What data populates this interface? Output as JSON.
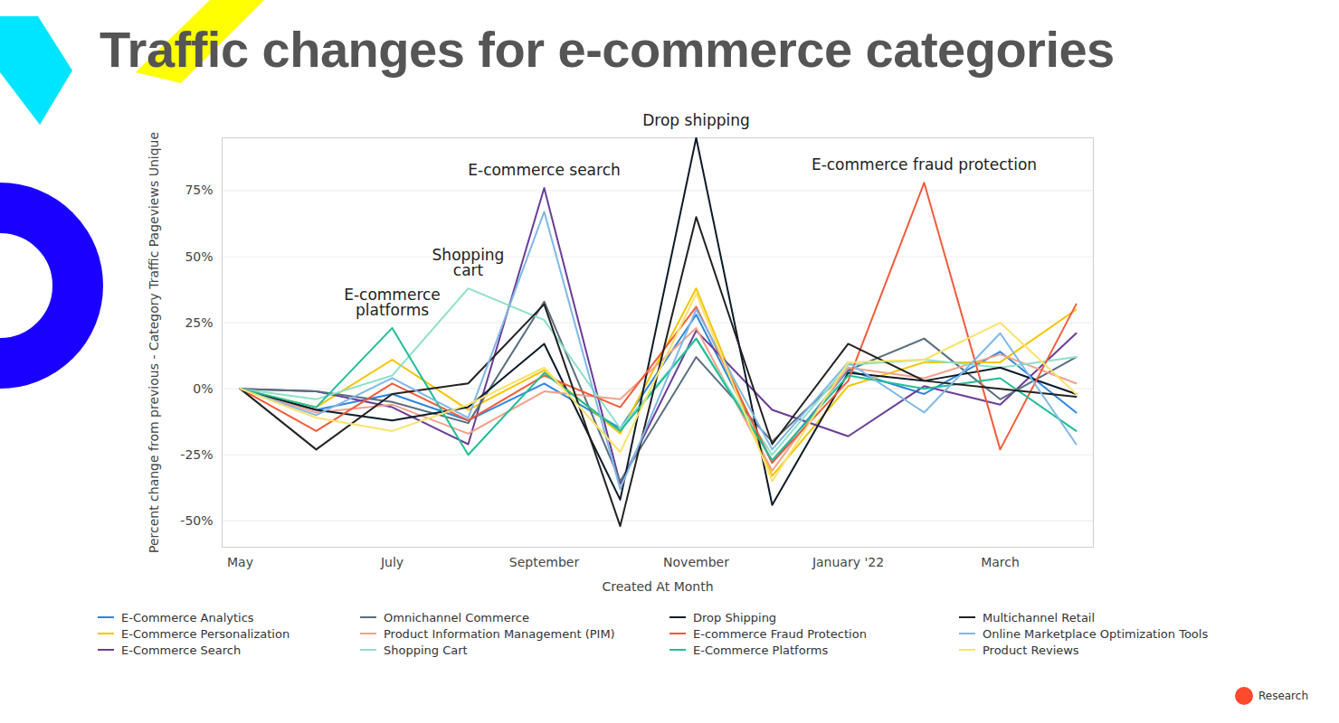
{
  "chart_data": {
    "type": "line",
    "title": "Traffic changes for e-commerce categories",
    "footer": "Research",
    "x_label": "Created At Month",
    "y_label": "Percent change from previous - Category Traffic Pageviews Unique",
    "categories": [
      "May",
      null,
      "July",
      null,
      "September",
      null,
      "November",
      null,
      "January '22",
      null,
      "March",
      null
    ],
    "ylim": [
      -60,
      95
    ],
    "yticks": [
      {
        "value": -50,
        "label": "-50%"
      },
      {
        "value": -25,
        "label": "-25%"
      },
      {
        "value": 0,
        "label": "0%"
      },
      {
        "value": 25,
        "label": "25%"
      },
      {
        "value": 50,
        "label": "50%"
      },
      {
        "value": 75,
        "label": "75%"
      }
    ],
    "grid": true,
    "legend": "bottom",
    "annotations": [
      {
        "text": "E-commerce\nplatforms",
        "series": "E-Commerce Platforms"
      },
      {
        "text": "Shopping\ncart",
        "series": "Shopping Cart"
      },
      {
        "text": "E-commerce search",
        "series": "E-Commerce Search"
      },
      {
        "text": "Drop shipping",
        "series": "Drop Shipping"
      },
      {
        "text": "E-commerce fraud protection",
        "series": "E-commerce Fraud Protection"
      }
    ],
    "series": [
      {
        "name": "E-Commerce Analytics",
        "color": "#2e86de",
        "values": [
          0,
          -8,
          -2,
          -12,
          2,
          -15,
          28,
          -28,
          7,
          -2,
          14,
          -9
        ]
      },
      {
        "name": "E-Commerce Personalization",
        "color": "#f5c400",
        "values": [
          0,
          -7,
          11,
          -8,
          7,
          -17,
          38,
          -33,
          1,
          10,
          10,
          30
        ]
      },
      {
        "name": "E-Commerce Search",
        "color": "#6a3d9a",
        "values": [
          0,
          -1,
          -7,
          -21,
          76,
          -36,
          22,
          -8,
          -18,
          1,
          -6,
          21
        ]
      },
      {
        "name": "Omnichannel Commerce",
        "color": "#5a6e7f",
        "values": [
          0,
          -1,
          -5,
          -13,
          33,
          -35,
          12,
          -20,
          7,
          19,
          -4,
          12
        ]
      },
      {
        "name": "Product Information Management (PIM)",
        "color": "#f4a08b",
        "values": [
          0,
          -9,
          -6,
          -17,
          -1,
          -4,
          23,
          -31,
          8,
          4,
          13,
          2
        ]
      },
      {
        "name": "Shopping Cart",
        "color": "#8ee0c9",
        "values": [
          0,
          -4,
          5,
          38,
          26,
          -15,
          19,
          -25,
          9,
          11,
          8,
          12
        ]
      },
      {
        "name": "Drop Shipping",
        "color": "#0d1b2a",
        "values": [
          0,
          -8,
          -12,
          -7,
          17,
          -42,
          95,
          -44,
          6,
          3,
          8,
          -2
        ]
      },
      {
        "name": "E-commerce Fraud Protection",
        "color": "#f25c3b",
        "values": [
          0,
          -16,
          2,
          -12,
          5,
          -7,
          31,
          -28,
          3,
          78,
          -23,
          32
        ]
      },
      {
        "name": "E-Commerce Platforms",
        "color": "#1fbf95",
        "values": [
          0,
          -7,
          23,
          -25,
          6,
          -16,
          19,
          -27,
          5,
          0,
          4,
          -16
        ]
      },
      {
        "name": "Multichannel Retail",
        "color": "#222222",
        "values": [
          0,
          -23,
          -2,
          2,
          32,
          -52,
          65,
          -21,
          17,
          3,
          0,
          -3
        ]
      },
      {
        "name": "Online Marketplace Optimization Tools",
        "color": "#7fb8e6",
        "values": [
          0,
          -10,
          4,
          -11,
          67,
          -38,
          30,
          -23,
          10,
          -9,
          21,
          -21
        ]
      },
      {
        "name": "Product Reviews",
        "color": "#fbe36b",
        "values": [
          0,
          -11,
          -16,
          -6,
          8,
          -24,
          36,
          -35,
          10,
          11,
          25,
          -2
        ]
      }
    ]
  }
}
